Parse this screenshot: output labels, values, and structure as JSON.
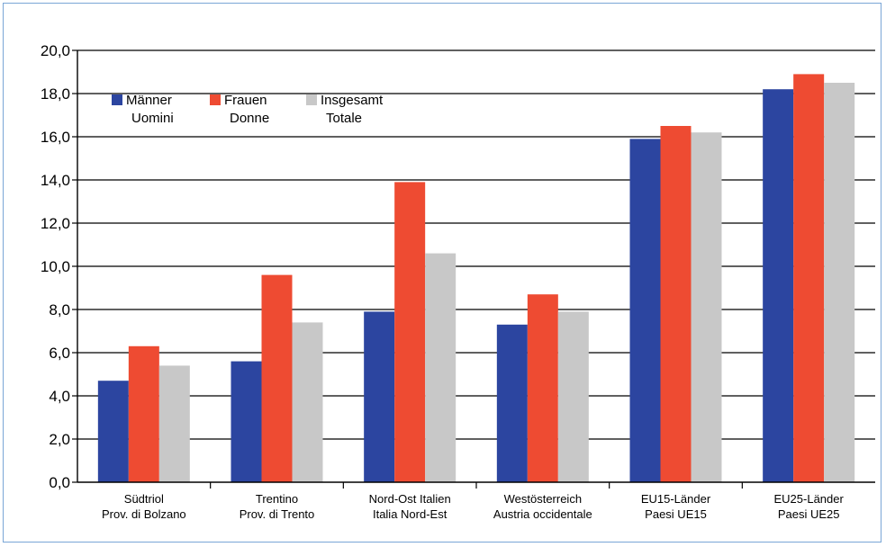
{
  "chart_data": {
    "type": "bar",
    "categories": [
      [
        "Südtriol",
        "Prov. di Bolzano"
      ],
      [
        "Trentino",
        "Prov. di Trento"
      ],
      [
        "Nord-Ost Italien",
        "Italia Nord-Est"
      ],
      [
        "Westösterreich",
        "Austria occidentale"
      ],
      [
        "EU15-Länder",
        "Paesi UE15"
      ],
      [
        "EU25-Länder",
        "Paesi UE25"
      ]
    ],
    "series": [
      {
        "name": [
          "Männer",
          "Uomini"
        ],
        "color": "#2c45a0",
        "values": [
          4.7,
          5.6,
          7.9,
          7.3,
          15.9,
          18.2
        ]
      },
      {
        "name": [
          "Frauen",
          "Donne"
        ],
        "color": "#ee4b32",
        "values": [
          6.3,
          9.6,
          13.9,
          8.7,
          16.5,
          18.9
        ]
      },
      {
        "name": [
          "Insgesamt",
          "Totale"
        ],
        "color": "#c8c8c8",
        "values": [
          5.4,
          7.4,
          10.6,
          7.9,
          16.2,
          18.5
        ]
      }
    ],
    "ylim": [
      0,
      20
    ],
    "yticks": [
      "0,0",
      "2,0",
      "4,0",
      "6,0",
      "8,0",
      "10,0",
      "12,0",
      "14,0",
      "16,0",
      "18,0",
      "20,0"
    ],
    "grid": true,
    "legend_position": "top-left",
    "title": "",
    "xlabel": "",
    "ylabel": ""
  }
}
